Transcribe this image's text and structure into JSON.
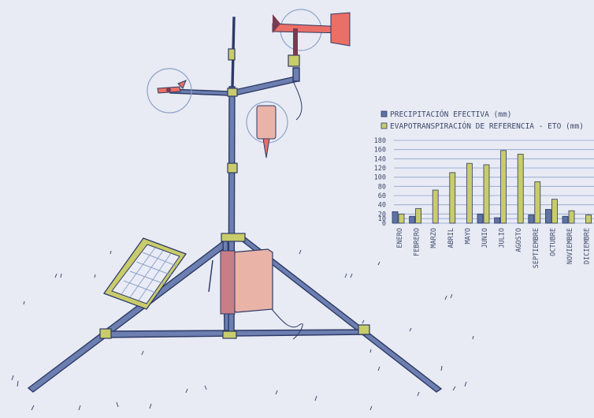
{
  "chart_data": {
    "type": "bar",
    "categories": [
      "ENERO",
      "FEBRERO",
      "MARZO",
      "ABRIL",
      "MAYO",
      "JUNIO",
      "JULIO",
      "AGOSTO",
      "SEPTIEMBRE",
      "OCTUBRE",
      "NOVIEMBRE",
      "DICIEMBRE"
    ],
    "series": [
      {
        "name": "PRECIPITACIÓN EFECTIVA (mm)",
        "color": "#5e72a3",
        "values": [
          25,
          15,
          0,
          0,
          0,
          20,
          12,
          0,
          18,
          30,
          15,
          0
        ]
      },
      {
        "name": "EVAPOTRANSPIRACIÓN DE REFERENCIA - ETO (mm)",
        "color": "#c9cc6a",
        "values": [
          20,
          32,
          72,
          110,
          130,
          127,
          158,
          150,
          90,
          52,
          27,
          18
        ]
      }
    ],
    "yticks": [
      "0",
      "10",
      "20",
      "40",
      "60",
      "80",
      "100",
      "120",
      "140",
      "160",
      "180"
    ],
    "ylim": [
      0,
      180
    ],
    "legend_position": "top",
    "grid": true
  },
  "colors": {
    "background": "#e8ebf4",
    "frame": "#6c7fb0",
    "outline": "#2e3a66",
    "clamp": "#c9cc6a",
    "vane": "#ea6f66",
    "box": "#e9b3a8"
  },
  "icons": [
    "weather-station-illustration",
    "solar-panel-icon",
    "wind-vane-icon",
    "anemometer-icon",
    "rain-gauge-icon",
    "data-logger-box-icon"
  ]
}
